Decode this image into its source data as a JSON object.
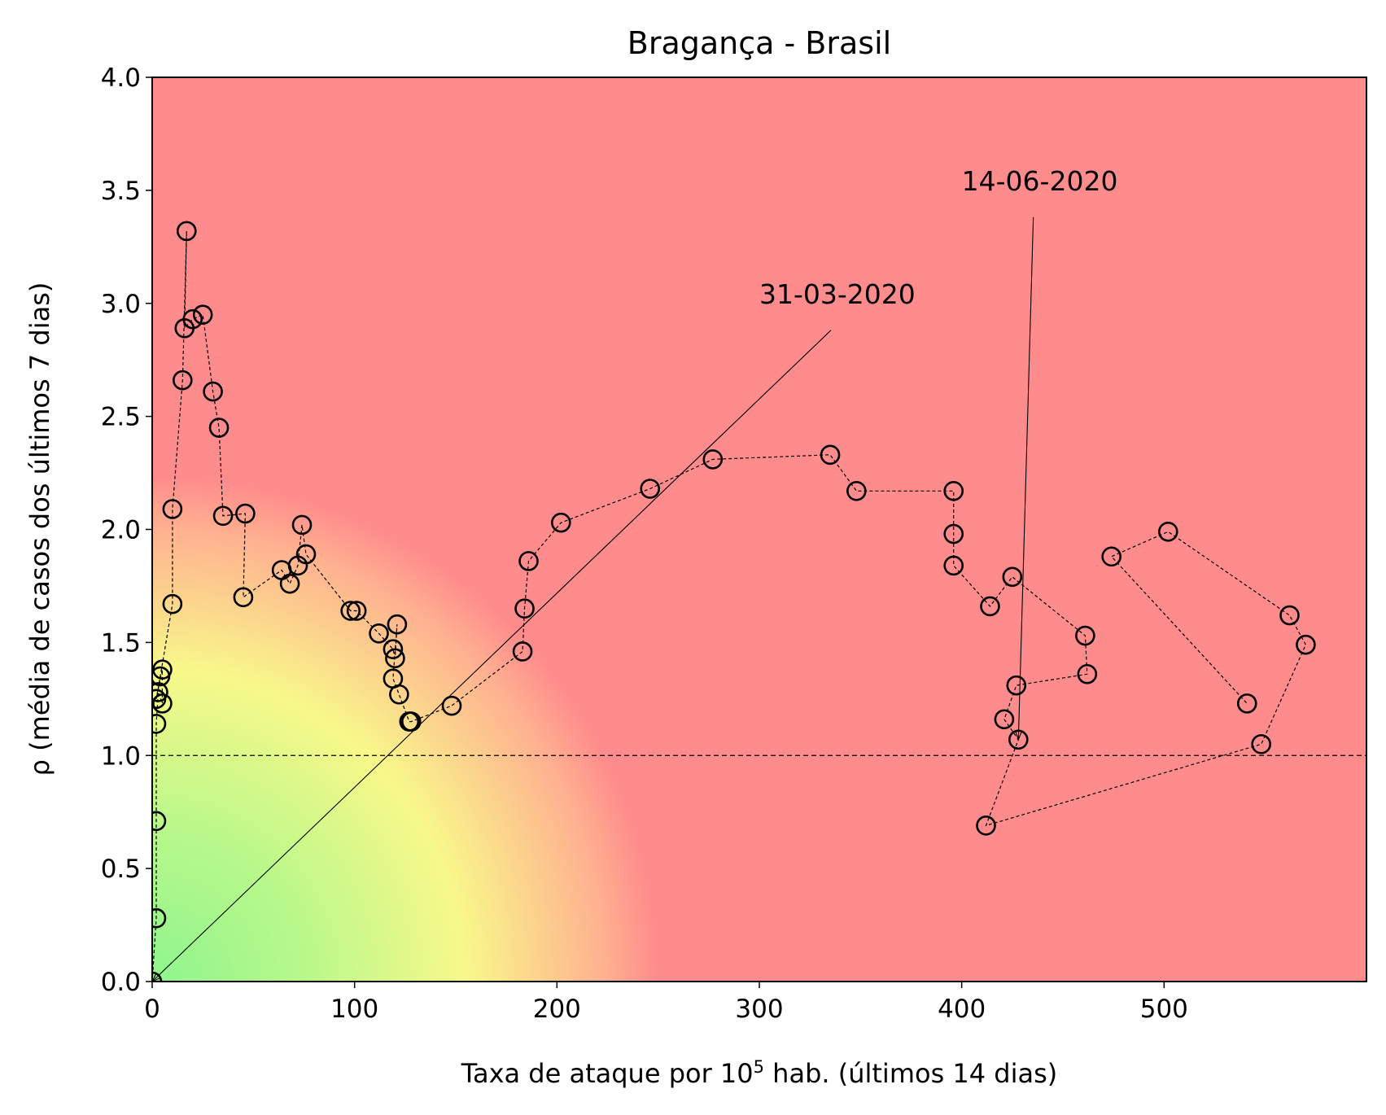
{
  "chart_data": {
    "type": "scatter",
    "title": "Bragança - Brasil",
    "xlabel": {
      "prefix": "Taxa de ataque por 10",
      "superscript": "5",
      "suffix": " hab. (últimos 14 dias)"
    },
    "ylabel": "ρ (média de casos dos últimos 7 dias)",
    "xlim": [
      0,
      600
    ],
    "ylim": [
      0,
      4.0
    ],
    "xticks": [
      0,
      100,
      200,
      300,
      400,
      500
    ],
    "yticks": [
      0.0,
      0.5,
      1.0,
      1.5,
      2.0,
      2.5,
      3.0,
      3.5,
      4.0
    ],
    "xtick_labels": [
      "0",
      "100",
      "200",
      "300",
      "400",
      "500"
    ],
    "ytick_labels": [
      "0.0",
      "0.5",
      "1.0",
      "1.5",
      "2.0",
      "2.5",
      "3.0",
      "3.5",
      "4.0"
    ],
    "reference_line_y": 1.0,
    "background": {
      "green": "#8ff58f",
      "yellow": "#f8f88a",
      "red": "#ff8c8c"
    },
    "marker": {
      "style": "open-circle",
      "edge_color": "#000000"
    },
    "series": [
      {
        "x": [
          0,
          2,
          2,
          2,
          3,
          5,
          5,
          2,
          4,
          10,
          10,
          15,
          17,
          16,
          20,
          25,
          30,
          33,
          35,
          46,
          45,
          64,
          68,
          72,
          74,
          76,
          98,
          101,
          112,
          119,
          120,
          121,
          119,
          122,
          127,
          128,
          148,
          183,
          184,
          186,
          202,
          246,
          277,
          335,
          348,
          396,
          396,
          396,
          414,
          425,
          461,
          462,
          427,
          421,
          428,
          412,
          548,
          570,
          562,
          502,
          474,
          541
        ],
        "y": [
          0.0,
          0.28,
          0.71,
          1.14,
          1.28,
          1.23,
          1.38,
          1.25,
          1.35,
          1.67,
          2.09,
          2.66,
          3.32,
          2.89,
          2.93,
          2.95,
          2.61,
          2.45,
          2.06,
          2.07,
          1.7,
          1.82,
          1.76,
          1.84,
          2.02,
          1.89,
          1.64,
          1.64,
          1.54,
          1.47,
          1.43,
          1.58,
          1.34,
          1.27,
          1.15,
          1.15,
          1.22,
          1.46,
          1.65,
          1.86,
          2.03,
          2.18,
          2.31,
          2.33,
          2.17,
          2.17,
          1.98,
          1.84,
          1.66,
          1.79,
          1.53,
          1.36,
          1.31,
          1.16,
          1.07,
          0.69,
          1.05,
          1.49,
          1.62,
          1.99,
          1.88,
          1.23
        ]
      }
    ],
    "annotations": [
      {
        "text": "31-03-2020",
        "point": [
          0,
          0.0
        ],
        "text_pos": [
          300,
          3.0
        ]
      },
      {
        "text": "14-06-2020",
        "point": [
          428,
          1.07
        ],
        "text_pos": [
          400,
          3.5
        ]
      }
    ]
  }
}
